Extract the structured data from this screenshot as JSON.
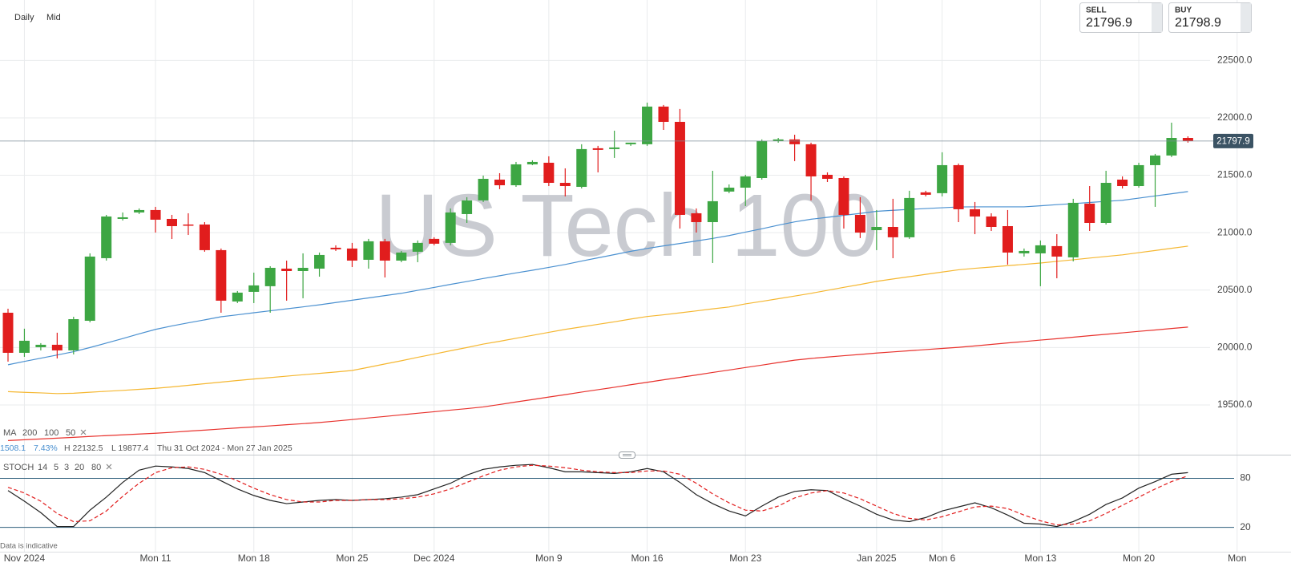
{
  "header": {
    "interval": "Daily",
    "price_type": "Mid",
    "sell_label": "SELL",
    "sell_price": "21796.9",
    "buy_label": "BUY",
    "buy_price": "21798.9",
    "note": "Data is indicative"
  },
  "chart_data": [
    {
      "type": "candlestick",
      "watermark": "US Tech 100",
      "categories": [
        null,
        "Nov 2024",
        null,
        null,
        null,
        null,
        null,
        null,
        null,
        "Mon 11",
        null,
        null,
        null,
        null,
        null,
        "Mon 18",
        null,
        null,
        null,
        null,
        null,
        "Mon 25",
        null,
        null,
        null,
        null,
        "Dec 2024",
        null,
        null,
        null,
        null,
        null,
        null,
        "Mon 9",
        null,
        null,
        null,
        null,
        null,
        "Mon 16",
        null,
        null,
        null,
        null,
        null,
        "Mon 23",
        null,
        null,
        null,
        null,
        null,
        null,
        null,
        "Jan 2025",
        null,
        null,
        null,
        "Mon 6",
        null,
        null,
        null,
        null,
        null,
        "Mon 13",
        null,
        null,
        null,
        null,
        null,
        "Mon 20",
        null,
        null,
        null,
        null,
        null,
        "Mon"
      ],
      "open": [
        20303,
        19954,
        20003,
        20024,
        19975,
        20233,
        20778,
        21120,
        21176,
        21197,
        21120,
        21071,
        21071,
        20848,
        20401,
        20485,
        20534,
        20687,
        20666,
        20687,
        20869,
        20862,
        20764,
        20925,
        20757,
        20834,
        20946,
        20911,
        21162,
        21281,
        21462,
        21413,
        21595,
        21609,
        21434,
        21399,
        21735,
        21728,
        21770,
        21770,
        22098,
        21965,
        21169,
        21092,
        21358,
        21392,
        21476,
        21798,
        21812,
        21770,
        21504,
        21476,
        21155,
        21022,
        21050,
        20960,
        21351,
        21344,
        21588,
        21204,
        21141,
        21057,
        20820,
        20820,
        20883,
        20785,
        21253,
        21085,
        21462,
        21406,
        21588,
        21672,
        21825,
        null,
        null,
        null
      ],
      "high": [
        20338,
        20164,
        20038,
        20129,
        20268,
        20820,
        21155,
        21176,
        21211,
        21225,
        21155,
        21169,
        21092,
        20862,
        20492,
        20652,
        20708,
        20757,
        20820,
        20827,
        20890,
        20911,
        20946,
        20946,
        20841,
        20932,
        20960,
        21211,
        21309,
        21497,
        21518,
        21616,
        21630,
        21665,
        21560,
        21770,
        21756,
        21888,
        21784,
        22132.5,
        22112,
        22077,
        21211,
        21539,
        21420,
        21504,
        21812,
        21825,
        21853,
        21784,
        21525,
        21490,
        21309,
        21197,
        21295,
        21365,
        21365,
        21700,
        21602,
        21267,
        21169,
        21197,
        20862,
        20932,
        20987,
        21295,
        21406,
        21539,
        21490,
        21609,
        21686,
        21958,
        21839,
        null,
        null,
        null
      ],
      "low": [
        19877.4,
        19919,
        19975,
        19905,
        19940,
        20219,
        20757,
        21106,
        21162,
        21001,
        20945,
        20980,
        20834,
        20303,
        20387,
        20387,
        20303,
        20408,
        20429,
        20617,
        20841,
        20701,
        20687,
        20610,
        20743,
        20743,
        20890,
        20890,
        21085,
        21267,
        21379,
        21399,
        21588,
        21406,
        21316,
        21385,
        21525,
        21651,
        21756,
        21756,
        21895,
        21036,
        21001,
        20736,
        21344,
        21232,
        21462,
        21784,
        21623,
        21281,
        21441,
        21036,
        20953,
        20848,
        20778,
        20946,
        21316,
        21316,
        21092,
        20987,
        21015,
        20722,
        20792,
        20534,
        20603,
        20750,
        21015,
        21071,
        21385,
        21392,
        21225,
        21658,
        21784,
        null,
        null,
        null
      ],
      "close": [
        19954,
        20059,
        20024,
        19975,
        20247,
        20792,
        21141,
        21134,
        21197,
        21113,
        21057,
        21064,
        20848,
        20408,
        20478,
        20541,
        20694,
        20666,
        20694,
        20806,
        20855,
        20757,
        20925,
        20757,
        20827,
        20911,
        20904,
        21176,
        21281,
        21469,
        21413,
        21595,
        21616,
        21434,
        21406,
        21728,
        21721,
        21742,
        21784,
        22098,
        21965,
        21155,
        21092,
        21274,
        21392,
        21490,
        21798,
        21812,
        21770,
        21490,
        21469,
        21155,
        21001,
        21050,
        20960,
        21302,
        21330,
        21588,
        21204,
        21141,
        21050,
        20827,
        20841,
        20890,
        20792,
        21260,
        21085,
        21434,
        21406,
        21588,
        21672,
        21825,
        21798,
        null,
        null,
        null
      ],
      "up_color": "#3da643",
      "down_color": "#e11d1d",
      "indicator_label": "MA",
      "series": [
        {
          "name": "200",
          "color": "#e8322d",
          "values": [
            19190,
            19197,
            19204,
            19211,
            19218,
            19226,
            19233,
            19240,
            19247,
            19254,
            19262,
            19272,
            19281,
            19291,
            19300,
            19309,
            19318,
            19328,
            19337,
            19347,
            19360,
            19373,
            19387,
            19400,
            19414,
            19428,
            19441,
            19455,
            19468,
            19483,
            19504,
            19526,
            19547,
            19569,
            19590,
            19612,
            19633,
            19654,
            19676,
            19697,
            19719,
            19740,
            19761,
            19783,
            19804,
            19826,
            19847,
            19869,
            19890,
            19905,
            19917,
            19929,
            19940,
            19952,
            19962,
            19972,
            19982,
            19992,
            20002,
            20014,
            20027,
            20040,
            20052,
            20065,
            20077,
            20090,
            20103,
            20115,
            20128,
            20141,
            20153,
            20166,
            20178,
            null,
            null,
            null
          ]
        },
        {
          "name": "100",
          "color": "#f5b731",
          "values": [
            19616,
            19610,
            19605,
            19599,
            19602,
            19611,
            19619,
            19627,
            19636,
            19645,
            19657,
            19671,
            19685,
            19699,
            19713,
            19726,
            19738,
            19751,
            19763,
            19775,
            19787,
            19800,
            19828,
            19857,
            19885,
            19915,
            19943,
            19972,
            20000,
            20030,
            20054,
            20081,
            20106,
            20132,
            20158,
            20180,
            20202,
            20224,
            20248,
            20270,
            20285,
            20302,
            20319,
            20337,
            20353,
            20380,
            20402,
            20425,
            20448,
            20472,
            20498,
            20524,
            20549,
            20576,
            20597,
            20617,
            20637,
            20657,
            20677,
            20690,
            20701,
            20713,
            20724,
            20736,
            20750,
            20764,
            20779,
            20793,
            20807,
            20826,
            20845,
            20864,
            20883,
            null,
            null,
            null
          ]
        },
        {
          "name": "50",
          "color": "#4a90d0",
          "values": [
            19850,
            19879,
            19907,
            19935,
            19964,
            20000,
            20039,
            20078,
            20119,
            20158,
            20188,
            20215,
            20241,
            20268,
            20285,
            20303,
            20320,
            20337,
            20354,
            20372,
            20392,
            20412,
            20432,
            20452,
            20472,
            20498,
            20523,
            20550,
            20575,
            20601,
            20625,
            20650,
            20673,
            20698,
            20723,
            20753,
            20781,
            20809,
            20838,
            20863,
            20885,
            20906,
            20928,
            20950,
            20975,
            21005,
            21034,
            21065,
            21094,
            21117,
            21134,
            21151,
            21168,
            21186,
            21195,
            21203,
            21210,
            21217,
            21224,
            21225,
            21225,
            21225,
            21225,
            21234,
            21244,
            21253,
            21263,
            21273,
            21282,
            21301,
            21320,
            21339,
            21358,
            null,
            null,
            null
          ]
        }
      ],
      "info": {
        "last": "1508.1",
        "change": "7.43%",
        "high": "H 22132.5",
        "low": "L 19877.4",
        "range": "Thu 31 Oct 2024 - Mon 27 Jan 2025"
      },
      "current_price": 21797.9,
      "ylim": [
        19067,
        23026
      ],
      "yticks": [
        {
          "value": 19500,
          "label": "19500.0"
        },
        {
          "value": 20000,
          "label": "20000.0"
        },
        {
          "value": 20500,
          "label": "20500.0"
        },
        {
          "value": 21000,
          "label": "21000.0"
        },
        {
          "value": 21500,
          "label": "21500.0"
        },
        {
          "value": 22000,
          "label": "22000.0"
        },
        {
          "value": 22500,
          "label": "22500.0"
        }
      ],
      "grid": true
    },
    {
      "type": "line",
      "title": "STOCH",
      "params": [
        14,
        5,
        3,
        20,
        80
      ],
      "series": [
        {
          "color": "#222222",
          "style": "solid",
          "values": [
            65,
            52,
            38,
            21,
            21,
            41,
            57,
            75,
            90,
            95,
            94,
            92,
            87,
            77,
            67,
            59,
            53,
            49,
            51,
            53,
            54,
            53,
            54,
            55,
            57,
            60,
            67,
            74,
            84,
            91,
            94,
            96,
            97,
            93,
            88,
            88,
            87,
            86,
            88,
            92,
            88,
            75,
            60,
            49,
            40,
            34,
            46,
            57,
            64,
            66,
            65,
            55,
            46,
            36,
            29,
            27,
            32,
            40,
            45,
            50,
            44,
            35,
            25,
            24,
            21,
            27,
            36,
            48,
            56,
            68,
            76,
            85,
            87,
            null,
            null,
            null
          ]
        },
        {
          "color": "#e11d1d",
          "style": "dashed",
          "values": [
            69,
            62,
            52,
            37,
            27,
            28,
            40,
            58,
            74,
            87,
            93,
            94,
            91,
            85,
            77,
            68,
            60,
            54,
            51,
            51,
            53,
            53,
            54,
            54,
            55,
            57,
            61,
            67,
            75,
            83,
            90,
            94,
            96,
            95,
            93,
            90,
            88,
            87,
            87,
            89,
            89,
            85,
            74,
            61,
            50,
            41,
            40,
            46,
            56,
            62,
            65,
            62,
            55,
            46,
            37,
            31,
            29,
            33,
            39,
            45,
            46,
            43,
            35,
            28,
            23,
            24,
            28,
            37,
            47,
            57,
            67,
            76,
            83,
            null,
            null,
            null
          ]
        }
      ],
      "ylim": [
        -1,
        106
      ],
      "yticks": [
        20,
        80
      ],
      "level_color": "#2f5f7c"
    }
  ]
}
